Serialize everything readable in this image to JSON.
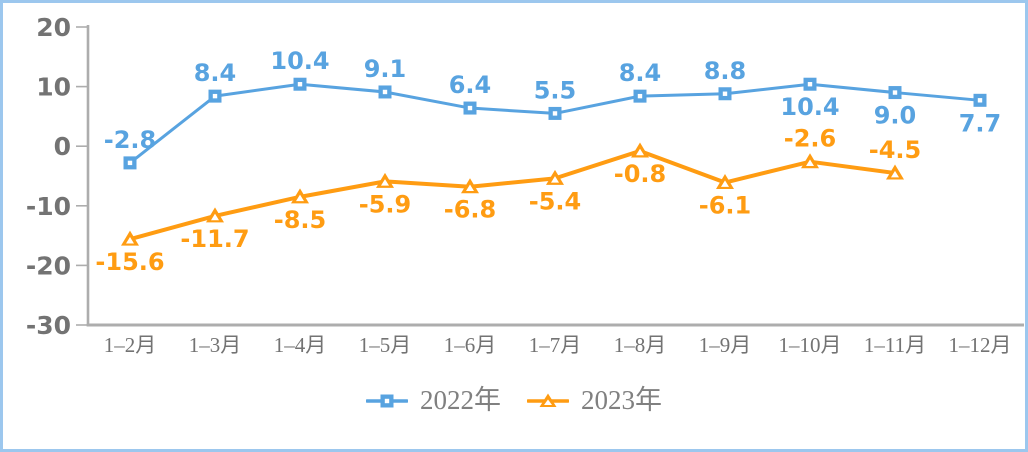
{
  "page": {
    "background_color": "#ffffff",
    "border_color": "#9cc7ee"
  },
  "chart_data": {
    "type": "line",
    "title": "",
    "xlabel": "",
    "ylabel": "",
    "categories": [
      "1–2月",
      "1–3月",
      "1–4月",
      "1–5月",
      "1–6月",
      "1–7月",
      "1–8月",
      "1–9月",
      "1–10月",
      "1–11月",
      "1–12月"
    ],
    "series": [
      {
        "name": "2022年",
        "marker": "square",
        "color": "#58a3e0",
        "values": [
          -2.8,
          8.4,
          10.4,
          9.1,
          6.4,
          5.5,
          8.4,
          8.8,
          10.4,
          9.0,
          7.7
        ],
        "value_labels": [
          "-2.8",
          "8.4",
          "10.4",
          "9.1",
          "6.4",
          "5.5",
          "8.4",
          "8.8",
          "10.4",
          "9.0",
          "7.7"
        ],
        "label_side": [
          "above",
          "above",
          "above",
          "above",
          "above",
          "above",
          "above",
          "above",
          "below",
          "below",
          "below"
        ]
      },
      {
        "name": "2023年",
        "marker": "triangle",
        "color": "#ff9c12",
        "values": [
          -15.6,
          -11.7,
          -8.5,
          -5.9,
          -6.8,
          -5.4,
          -0.8,
          -6.1,
          -2.6,
          -4.5,
          null
        ],
        "value_labels": [
          "-15.6",
          "-11.7",
          "-8.5",
          "-5.9",
          "-6.8",
          "-5.4",
          "-0.8",
          "-6.1",
          "-2.6",
          "-4.5",
          ""
        ],
        "label_side": [
          "below",
          "below",
          "below",
          "below",
          "below",
          "below",
          "below",
          "below",
          "above",
          "above",
          ""
        ]
      }
    ],
    "yticks": [
      20,
      10,
      0,
      -10,
      -20,
      -30
    ],
    "ylim": [
      -30,
      20
    ],
    "grid": false,
    "legend_position": "bottom",
    "axis_line_color": "#adadad",
    "ytick_label_color": "#737373",
    "xtick_label_color": "#737373",
    "legend_text_color": "#808080"
  }
}
